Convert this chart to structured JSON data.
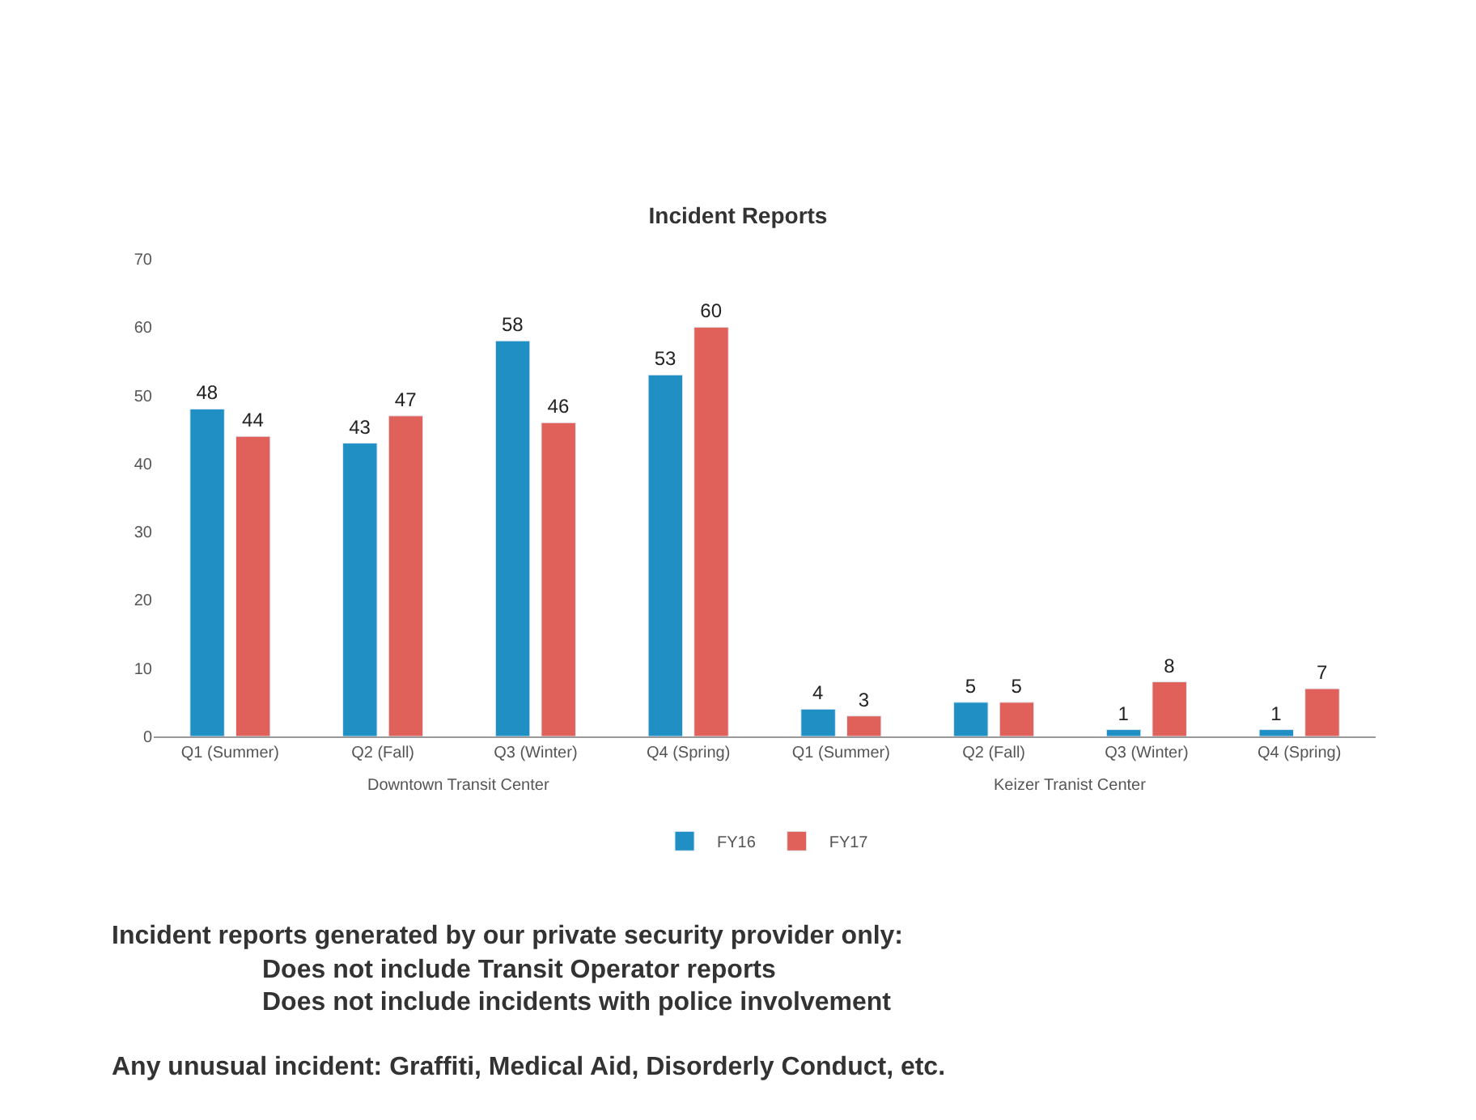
{
  "chart_data": {
    "type": "bar",
    "title": "Incident Reports",
    "categories": [
      "Q1 (Summer)",
      "Q2 (Fall)",
      "Q3 (Winter)",
      "Q4 (Spring)",
      "Q1 (Summer)",
      "Q2 (Fall)",
      "Q3 (Winter)",
      "Q4 (Spring)"
    ],
    "series": [
      {
        "name": "FY16",
        "color": "#1f8fc4",
        "values": [
          48,
          43,
          58,
          53,
          4,
          5,
          1,
          1
        ]
      },
      {
        "name": "FY17",
        "color": "#e0605a",
        "values": [
          44,
          47,
          46,
          60,
          3,
          5,
          8,
          7
        ]
      }
    ],
    "ylim": [
      0,
      70
    ],
    "yticks": [
      0,
      10,
      20,
      30,
      40,
      50,
      60,
      70
    ],
    "data_labels": true,
    "grid": false,
    "legend": "bottom",
    "annotations": [
      "Downtown Transit Center",
      "Keizer Tranist Center",
      "Incident reports generated by our private security provider only:",
      "Does not include Transit Operator reports",
      "Does not include incidents with police involvement",
      "Any unusual incident: Graffiti, Medical Aid, Disorderly Conduct, etc."
    ]
  }
}
